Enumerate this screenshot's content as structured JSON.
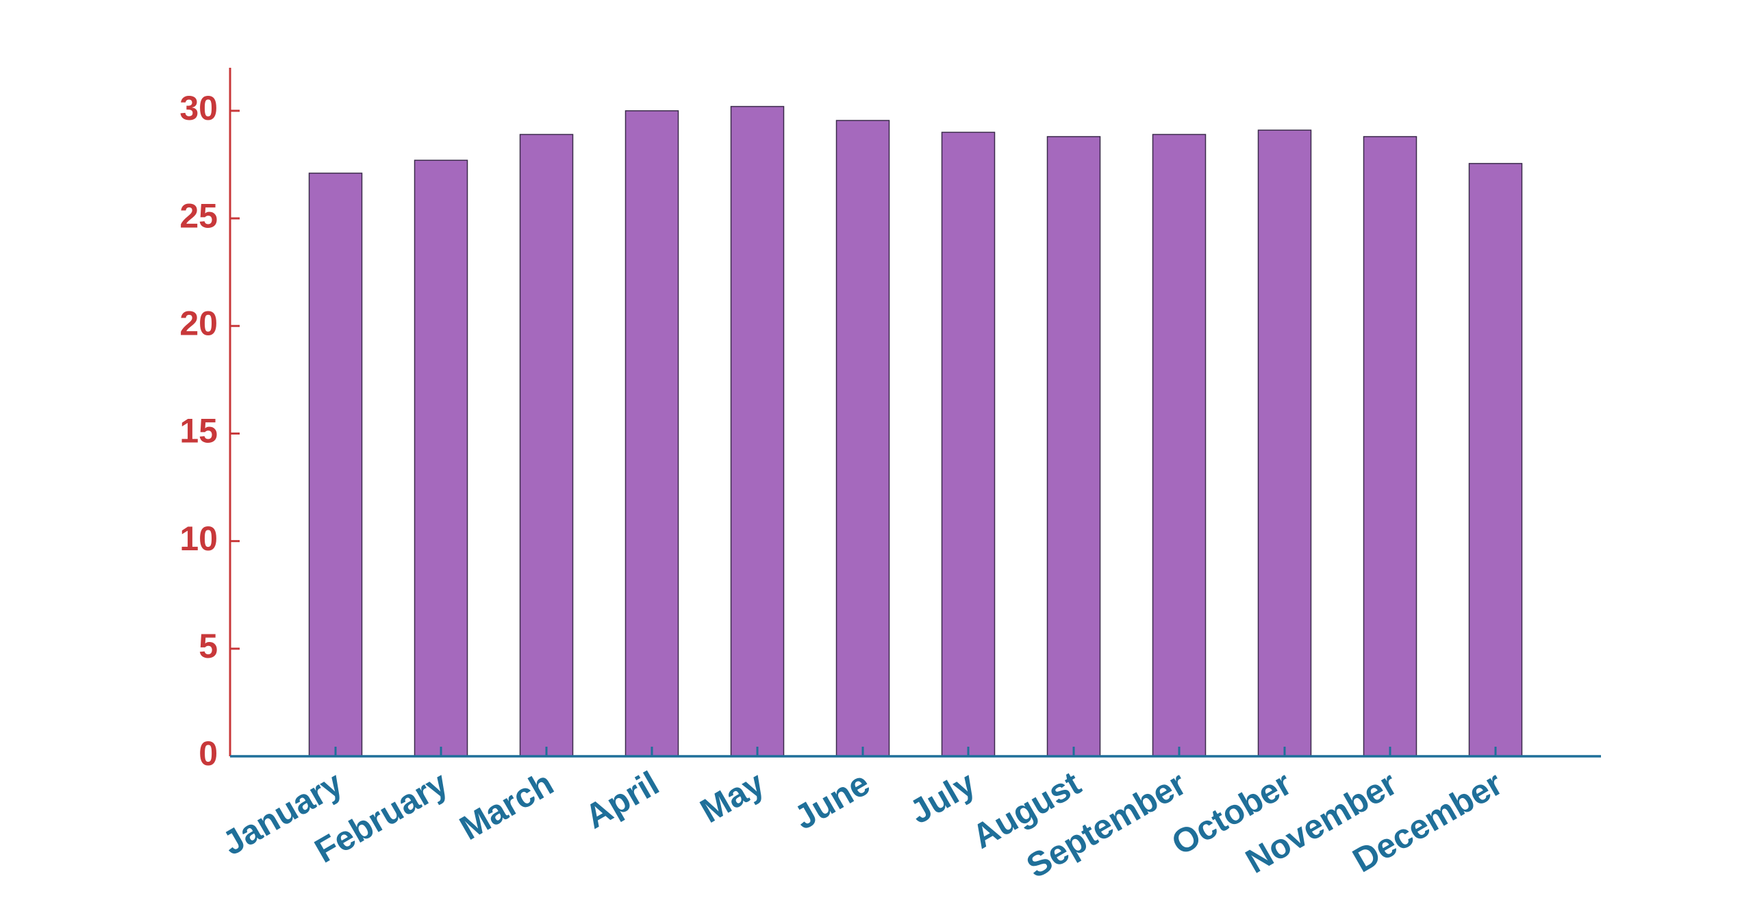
{
  "chart_data": {
    "type": "bar",
    "categories": [
      "January",
      "February",
      "March",
      "April",
      "May",
      "June",
      "July",
      "August",
      "September",
      "October",
      "November",
      "December"
    ],
    "values": [
      27.1,
      27.7,
      28.9,
      30.0,
      30.2,
      29.55,
      29.0,
      28.8,
      28.9,
      29.1,
      28.8,
      27.55
    ],
    "color": "#a569bd",
    "ylim": [
      0,
      32
    ],
    "yticks": [
      0,
      5,
      10,
      15,
      20,
      25,
      30
    ],
    "grid": false
  }
}
